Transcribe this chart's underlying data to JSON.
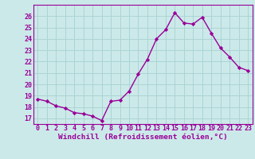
{
  "x": [
    0,
    1,
    2,
    3,
    4,
    5,
    6,
    7,
    8,
    9,
    10,
    11,
    12,
    13,
    14,
    15,
    16,
    17,
    18,
    19,
    20,
    21,
    22,
    23
  ],
  "y": [
    18.7,
    18.5,
    18.1,
    17.9,
    17.5,
    17.4,
    17.2,
    16.8,
    18.5,
    18.6,
    19.4,
    20.9,
    22.2,
    24.0,
    24.8,
    26.3,
    25.4,
    25.3,
    25.9,
    24.5,
    23.2,
    22.4,
    21.5,
    21.2
  ],
  "line_color": "#990099",
  "marker": "D",
  "marker_size": 2.2,
  "bg_color": "#cce9e9",
  "grid_color": "#aad4d4",
  "ylim": [
    16.5,
    27.0
  ],
  "yticks": [
    17,
    18,
    19,
    20,
    21,
    22,
    23,
    24,
    25,
    26
  ],
  "xticks": [
    0,
    1,
    2,
    3,
    4,
    5,
    6,
    7,
    8,
    9,
    10,
    11,
    12,
    13,
    14,
    15,
    16,
    17,
    18,
    19,
    20,
    21,
    22,
    23
  ],
  "xlabel": "Windchill (Refroidissement éolien,°C)",
  "xlabel_fontsize": 6.8,
  "tick_fontsize": 6.0,
  "line_width": 1.0
}
